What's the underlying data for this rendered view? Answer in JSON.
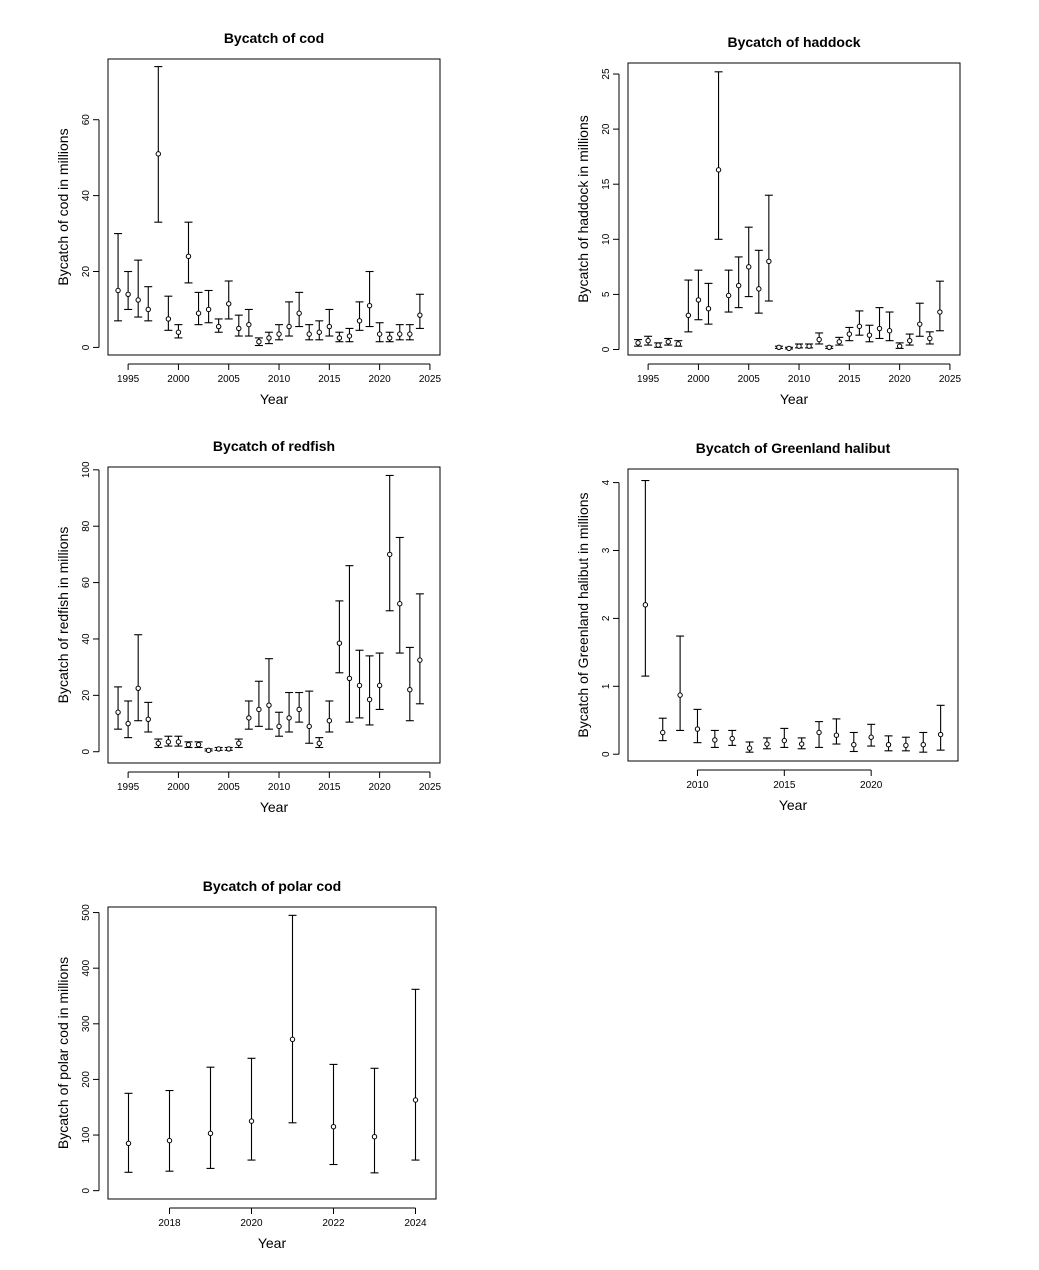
{
  "chart_data": [
    {
      "type": "scatter",
      "title": "Bycatch of cod",
      "xlabel": "Year",
      "ylabel": "Bycatch of cod in millions",
      "xlim": [
        1993,
        2026
      ],
      "ylim": [
        -2,
        76
      ],
      "xticks": [
        1995,
        2000,
        2005,
        2010,
        2015,
        2020,
        2025
      ],
      "yticks": [
        0,
        20,
        40,
        60
      ],
      "grid": false,
      "legend": "none",
      "series": [
        {
          "x": [
            1994,
            1995,
            1996,
            1997,
            1998,
            1999,
            2000,
            2001,
            2002,
            2003,
            2004,
            2005,
            2006,
            2007,
            2008,
            2009,
            2010,
            2011,
            2012,
            2013,
            2014,
            2015,
            2016,
            2017,
            2018,
            2019,
            2020,
            2021,
            2022,
            2023,
            2024
          ],
          "y": [
            15,
            14,
            12.5,
            10,
            51,
            7.5,
            4,
            24,
            9,
            10,
            5.5,
            11.5,
            5,
            6,
            1.5,
            2.5,
            3.5,
            5.5,
            9,
            3.5,
            4,
            5.5,
            2.5,
            3,
            7,
            11,
            3.5,
            2.5,
            3.5,
            3.5,
            8.5
          ],
          "lower": [
            7,
            10,
            8,
            7,
            33,
            4.5,
            2.5,
            17,
            6,
            6.5,
            4,
            7.5,
            3,
            3,
            0.5,
            1,
            2,
            3,
            5.5,
            2,
            2,
            3,
            1.5,
            1.5,
            4.5,
            5.5,
            1.5,
            1.5,
            2,
            2,
            5
          ],
          "upper": [
            30,
            20,
            23,
            16,
            74,
            13.5,
            6,
            33,
            14.5,
            15,
            7.5,
            17.5,
            8.5,
            10,
            2.5,
            4,
            6,
            12,
            14.5,
            6,
            7,
            10,
            4,
            5,
            12,
            20,
            6.5,
            4,
            6,
            6,
            14
          ]
        }
      ]
    },
    {
      "type": "scatter",
      "title": "Bycatch of haddock",
      "xlabel": "Year",
      "ylabel": "Bycatch of haddock in millions",
      "xlim": [
        1993,
        2026
      ],
      "ylim": [
        -0.5,
        26
      ],
      "xticks": [
        1995,
        2000,
        2005,
        2010,
        2015,
        2020,
        2025
      ],
      "yticks": [
        0,
        5,
        10,
        15,
        20,
        25
      ],
      "grid": false,
      "legend": "none",
      "series": [
        {
          "x": [
            1994,
            1995,
            1996,
            1997,
            1998,
            1999,
            2000,
            2001,
            2002,
            2003,
            2004,
            2005,
            2006,
            2007,
            2008,
            2009,
            2010,
            2011,
            2012,
            2013,
            2014,
            2015,
            2016,
            2017,
            2018,
            2019,
            2020,
            2021,
            2022,
            2023,
            2024
          ],
          "y": [
            0.6,
            0.8,
            0.4,
            0.7,
            0.5,
            3.1,
            4.5,
            3.7,
            16.3,
            4.9,
            5.8,
            7.5,
            5.5,
            8,
            0.2,
            0.1,
            0.3,
            0.3,
            0.9,
            0.2,
            0.7,
            1.4,
            2.1,
            1.3,
            1.9,
            1.7,
            0.3,
            0.8,
            2.3,
            1,
            3.4
          ],
          "lower": [
            0.3,
            0.4,
            0.2,
            0.4,
            0.3,
            1.6,
            2.7,
            2.3,
            10,
            3.4,
            3.8,
            4.8,
            3.3,
            4.4,
            0.1,
            0.05,
            0.15,
            0.15,
            0.5,
            0.1,
            0.4,
            0.8,
            1.3,
            0.7,
            1,
            0.8,
            0.1,
            0.4,
            1.2,
            0.5,
            1.7
          ],
          "upper": [
            0.9,
            1.2,
            0.6,
            1,
            0.8,
            6.3,
            7.2,
            6,
            25.2,
            7.2,
            8.4,
            11.1,
            9,
            14,
            0.3,
            0.2,
            0.5,
            0.5,
            1.5,
            0.3,
            1.1,
            2,
            3.5,
            2.2,
            3.8,
            3.4,
            0.6,
            1.4,
            4.2,
            1.6,
            6.2
          ]
        }
      ]
    },
    {
      "type": "scatter",
      "title": "Bycatch of redfish",
      "xlabel": "Year",
      "ylabel": "Bycatch of redfish in millions",
      "xlim": [
        1993,
        2026
      ],
      "ylim": [
        -4,
        101
      ],
      "xticks": [
        1995,
        2000,
        2005,
        2010,
        2015,
        2020,
        2025
      ],
      "yticks": [
        0,
        20,
        40,
        60,
        80,
        100
      ],
      "grid": false,
      "legend": "none",
      "series": [
        {
          "x": [
            1994,
            1995,
            1996,
            1997,
            1998,
            1999,
            2000,
            2001,
            2002,
            2003,
            2004,
            2005,
            2006,
            2007,
            2008,
            2009,
            2010,
            2011,
            2012,
            2013,
            2014,
            2015,
            2016,
            2017,
            2018,
            2019,
            2020,
            2021,
            2022,
            2023,
            2024
          ],
          "y": [
            14,
            10,
            22.5,
            11.5,
            3,
            3.5,
            3.5,
            2.5,
            2.5,
            0.5,
            1,
            1,
            3,
            12,
            15,
            16.5,
            9,
            12,
            15,
            9,
            3,
            11,
            38.5,
            26,
            23.5,
            18.5,
            23.5,
            70,
            52.5,
            22,
            32.5
          ],
          "lower": [
            8,
            5,
            11,
            7,
            1.5,
            2,
            2,
            1.5,
            1.5,
            0.3,
            0.5,
            0.5,
            1.5,
            8,
            9,
            8,
            5.5,
            7,
            10.5,
            3,
            1.5,
            7,
            28,
            10.5,
            12,
            9.5,
            15,
            50,
            35,
            11,
            17
          ],
          "upper": [
            23,
            18,
            41.5,
            17.5,
            4.5,
            5.5,
            5.5,
            3.5,
            3.5,
            1,
            1.5,
            1.5,
            4.5,
            18,
            25,
            33,
            14,
            21,
            21,
            21.5,
            5,
            18,
            53.5,
            66,
            36,
            34,
            35,
            98,
            76,
            37,
            56
          ]
        }
      ]
    },
    {
      "type": "scatter",
      "title": "Bycatch of Greenland halibut",
      "xlabel": "Year",
      "ylabel": "Bycatch of Greenland halibut in millions",
      "xlim": [
        2006,
        2025
      ],
      "ylim": [
        -0.1,
        4.2
      ],
      "xticks": [
        2010,
        2015,
        2020
      ],
      "yticks": [
        0,
        1,
        2,
        3,
        4
      ],
      "grid": false,
      "legend": "none",
      "series": [
        {
          "x": [
            2007,
            2008,
            2009,
            2010,
            2011,
            2012,
            2013,
            2014,
            2015,
            2016,
            2017,
            2018,
            2019,
            2020,
            2021,
            2022,
            2023,
            2024
          ],
          "y": [
            2.2,
            0.32,
            0.87,
            0.37,
            0.21,
            0.23,
            0.09,
            0.15,
            0.2,
            0.15,
            0.32,
            0.28,
            0.14,
            0.25,
            0.14,
            0.13,
            0.14,
            0.29
          ],
          "lower": [
            1.15,
            0.2,
            0.35,
            0.17,
            0.1,
            0.13,
            0.03,
            0.08,
            0.1,
            0.08,
            0.1,
            0.15,
            0.04,
            0.12,
            0.05,
            0.05,
            0.03,
            0.06
          ],
          "upper": [
            4.03,
            0.53,
            1.74,
            0.66,
            0.35,
            0.35,
            0.18,
            0.24,
            0.38,
            0.24,
            0.48,
            0.52,
            0.32,
            0.44,
            0.27,
            0.25,
            0.32,
            0.72
          ]
        }
      ]
    },
    {
      "type": "scatter",
      "title": "Bycatch of polar cod",
      "xlabel": "Year",
      "ylabel": "Bycatch of polar cod in millions",
      "xlim": [
        2016.5,
        2024.5
      ],
      "ylim": [
        -15,
        510
      ],
      "xticks": [
        2018,
        2020,
        2022,
        2024
      ],
      "yticks": [
        0,
        100,
        200,
        300,
        400,
        500
      ],
      "grid": false,
      "legend": "none",
      "series": [
        {
          "x": [
            2017,
            2018,
            2019,
            2020,
            2021,
            2022,
            2023,
            2024
          ],
          "y": [
            85,
            90,
            103,
            125,
            272,
            115,
            97,
            163
          ],
          "lower": [
            33,
            35,
            40,
            55,
            122,
            47,
            32,
            55
          ],
          "upper": [
            175,
            180,
            222,
            238,
            495,
            227,
            220,
            362
          ]
        }
      ]
    }
  ]
}
